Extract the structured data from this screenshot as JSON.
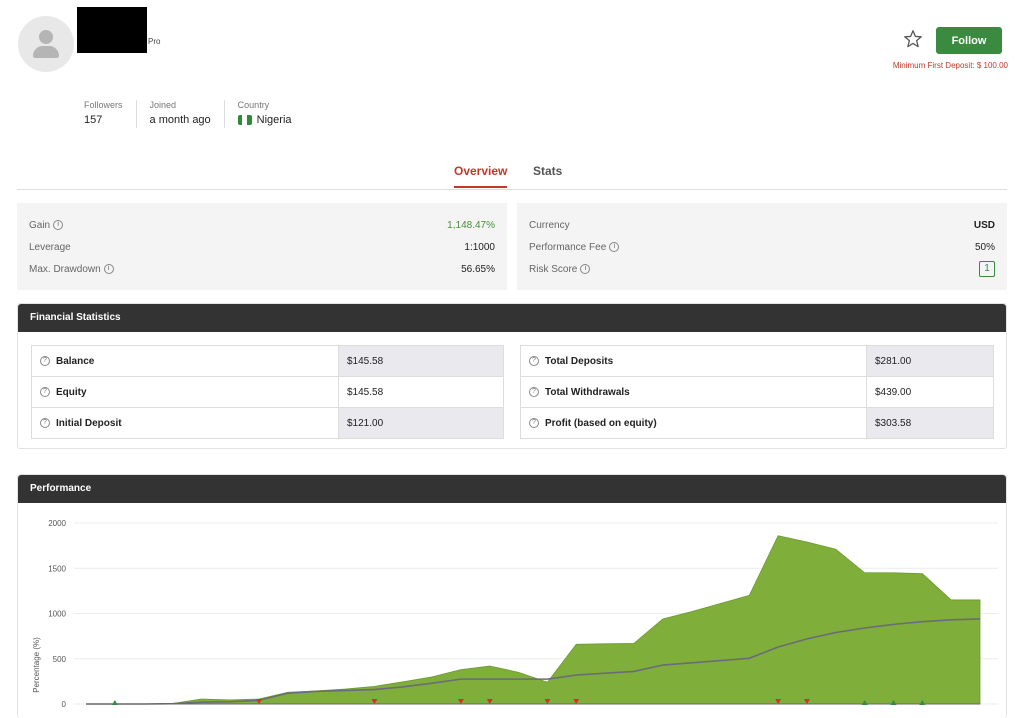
{
  "profile": {
    "badge": "Pro",
    "follow_label": "Follow",
    "min_deposit": "Minimum First Deposit: $ 100.00"
  },
  "stats": {
    "followers_label": "Followers",
    "followers_value": "157",
    "joined_label": "Joined",
    "joined_value": "a month ago",
    "country_label": "Country",
    "country_value": "Nigeria"
  },
  "tabs": [
    {
      "label": "Overview",
      "active": true
    },
    {
      "label": "Stats",
      "active": false
    }
  ],
  "summary_left": [
    {
      "label": "Gain",
      "value": "1,148.47%",
      "info": true
    },
    {
      "label": "Leverage",
      "value": "1:1000",
      "info": false
    },
    {
      "label": "Max. Drawdown",
      "value": "56.65%",
      "info": true
    }
  ],
  "summary_right": [
    {
      "label": "Currency",
      "value": "USD",
      "info": false
    },
    {
      "label": "Performance Fee",
      "value": "50%",
      "info": true
    },
    {
      "label": "Risk Score",
      "value": "1",
      "info": true
    }
  ],
  "financial": {
    "title": "Financial Statistics",
    "left": [
      {
        "label": "Balance",
        "value": "$145.58"
      },
      {
        "label": "Equity",
        "value": "$145.58"
      },
      {
        "label": "Initial Deposit",
        "value": "$121.00"
      }
    ],
    "right": [
      {
        "label": "Total Deposits",
        "value": "$281.00"
      },
      {
        "label": "Total Withdrawals",
        "value": "$439.00"
      },
      {
        "label": "Profit (based on equity)",
        "value": "$303.58"
      }
    ]
  },
  "performance": {
    "title": "Performance"
  },
  "colors": {
    "accent_green": "#3a8a3f",
    "accent_red": "#c0392b",
    "area_fill": "#7fae3a",
    "line": "#6b6b7a",
    "header_dark": "#333333"
  },
  "chart_data": {
    "type": "area",
    "ylabel": "Percentage (%)",
    "ylim": [
      0,
      2000
    ],
    "yticks": [
      0,
      500,
      1000,
      1500,
      2000
    ],
    "grid": true,
    "series": [
      {
        "values": [
          0,
          0,
          0,
          5,
          55,
          45,
          55,
          130,
          145,
          165,
          195,
          245,
          300,
          380,
          420,
          350,
          240,
          660,
          665,
          670,
          940,
          1020,
          1110,
          1200,
          1860,
          1790,
          1710,
          1450,
          1450,
          1440,
          1150,
          1150
        ]
      },
      {
        "values": [
          0,
          0,
          0,
          3,
          20,
          25,
          40,
          120,
          140,
          150,
          160,
          190,
          230,
          275,
          275,
          275,
          275,
          320,
          340,
          360,
          430,
          455,
          480,
          505,
          630,
          720,
          790,
          840,
          880,
          910,
          930,
          940
        ]
      }
    ],
    "markers": {
      "up": [
        1,
        27,
        28,
        29
      ],
      "down": [
        6,
        10,
        13,
        14,
        16,
        17,
        24,
        25
      ]
    }
  }
}
